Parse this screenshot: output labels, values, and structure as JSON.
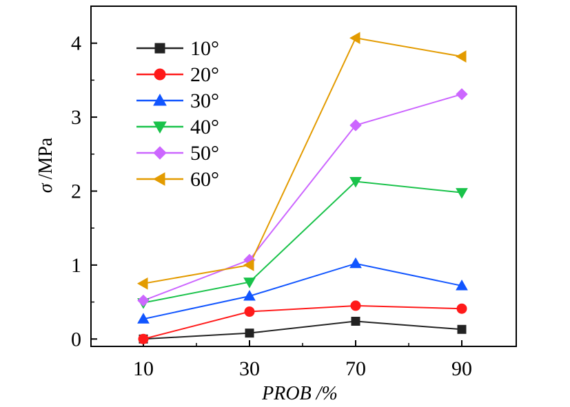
{
  "chart_data": {
    "type": "line",
    "categories": [
      "10",
      "30",
      "70",
      "90"
    ],
    "xlabel": "PROB /%",
    "ylabel_symbol": "σ",
    "ylabel_unit": "/MPa",
    "ylim": [
      -0.1,
      4.5
    ],
    "yticks": [
      "0",
      "1",
      "2",
      "3",
      "4"
    ],
    "grid": false,
    "legend_position": "top-left",
    "series": [
      {
        "name": "10°",
        "color": "#222222",
        "marker": "square",
        "values": [
          0.0,
          0.08,
          0.24,
          0.13
        ]
      },
      {
        "name": "20°",
        "color": "#ff1a1a",
        "marker": "circle",
        "values": [
          0.0,
          0.37,
          0.45,
          0.41
        ]
      },
      {
        "name": "30°",
        "color": "#1155ff",
        "marker": "triangle-up",
        "values": [
          0.27,
          0.58,
          1.02,
          0.72
        ]
      },
      {
        "name": "40°",
        "color": "#19c24a",
        "marker": "triangle-down",
        "values": [
          0.49,
          0.77,
          2.13,
          1.98
        ]
      },
      {
        "name": "50°",
        "color": "#cc66ff",
        "marker": "diamond",
        "values": [
          0.52,
          1.07,
          2.89,
          3.31
        ]
      },
      {
        "name": "60°",
        "color": "#e39b00",
        "marker": "triangle-left",
        "values": [
          0.75,
          1.0,
          4.07,
          3.82
        ]
      }
    ]
  }
}
